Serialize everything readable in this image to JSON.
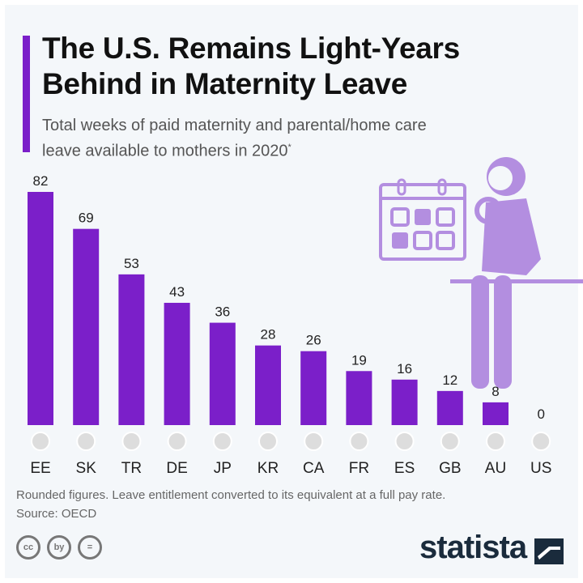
{
  "title_line1": "The U.S. Remains Light-Years",
  "title_line2": "Behind in Maternity Leave",
  "subtitle_line1": "Total weeks of paid maternity and parental/home care",
  "subtitle_line2": "leave available to mothers in 2020",
  "subtitle_mark": "*",
  "note": "Rounded figures. Leave entitlement converted to its equivalent at a full pay rate.",
  "source": "Source: OECD",
  "brand": "statista",
  "cc_icons": [
    "cc",
    "by",
    "="
  ],
  "colors": {
    "bar": "#7b1fc9",
    "illustration": "#b38ee0",
    "background": "#f4f7fa"
  },
  "chart_data": {
    "type": "bar",
    "categories": [
      "EE",
      "SK",
      "TR",
      "DE",
      "JP",
      "KR",
      "CA",
      "FR",
      "ES",
      "GB",
      "AU",
      "US"
    ],
    "values": [
      82,
      69,
      53,
      43,
      36,
      28,
      26,
      19,
      16,
      12,
      8,
      0
    ],
    "ylim": [
      0,
      82
    ],
    "grid": false,
    "data_labels": true
  }
}
